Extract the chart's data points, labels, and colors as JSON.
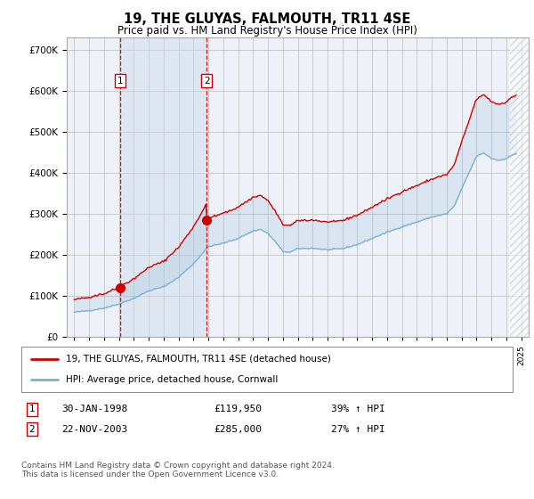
{
  "title": "19, THE GLUYAS, FALMOUTH, TR11 4SE",
  "subtitle": "Price paid vs. HM Land Registry's House Price Index (HPI)",
  "legend_label_red": "19, THE GLUYAS, FALMOUTH, TR11 4SE (detached house)",
  "legend_label_blue": "HPI: Average price, detached house, Cornwall",
  "footnote": "Contains HM Land Registry data © Crown copyright and database right 2024.\nThis data is licensed under the Open Government Licence v3.0.",
  "sale1_date": 1998.08,
  "sale1_price": 119950,
  "sale1_text": "30-JAN-1998",
  "sale1_value_text": "£119,950",
  "sale1_hpi_text": "39% ↑ HPI",
  "sale2_date": 2003.9,
  "sale2_price": 285000,
  "sale2_text": "22-NOV-2003",
  "sale2_value_text": "£285,000",
  "sale2_hpi_text": "27% ↑ HPI",
  "ylim": [
    0,
    730000
  ],
  "yticks": [
    0,
    100000,
    200000,
    300000,
    400000,
    500000,
    600000,
    700000
  ],
  "ytick_labels": [
    "£0",
    "£100K",
    "£200K",
    "£300K",
    "£400K",
    "£500K",
    "£600K",
    "£700K"
  ],
  "xlim": [
    1994.5,
    2025.5
  ],
  "background_color": "#ffffff",
  "plot_background": "#eef2f8",
  "grid_color": "#cccccc",
  "red_color": "#cc0000",
  "blue_color": "#7bafd4",
  "shade_color": "#ccd9ea",
  "hpi_base_1998": 86000,
  "hpi_base_2004": 224000,
  "sale1_hpi_index": 86000,
  "sale2_hpi_index": 224000
}
